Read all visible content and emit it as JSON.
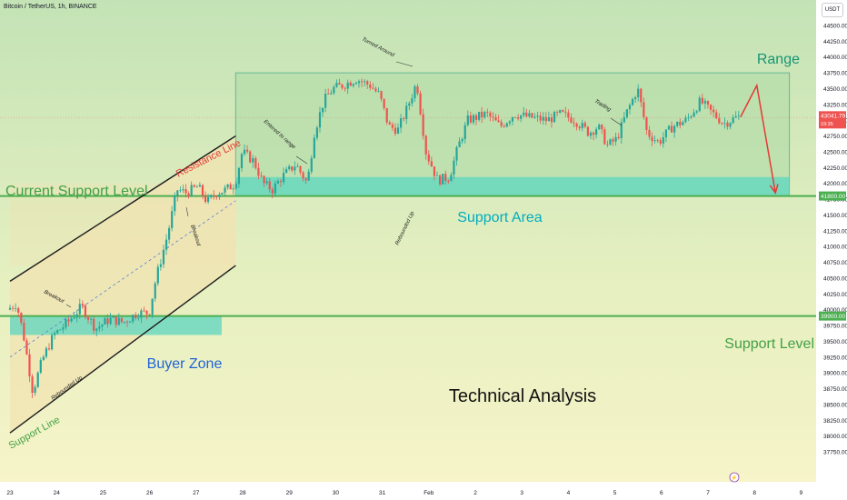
{
  "header": {
    "title": "Bitcoin / TetherUS, 1h, BINANCE",
    "currency_button": "USDT"
  },
  "colors": {
    "background": "#eef3c6",
    "range_box": "#b3dca9",
    "range_border": "#2e9d7f",
    "support_area": "#5cd6c0",
    "buyer_zone": "#5cd6c0",
    "channel_fill": "#f2e3b2",
    "green_line": "#4caf50",
    "bull": "#26a69a",
    "bear": "#ef5350",
    "arrow": "#e53935",
    "label_green": "#43a047",
    "label_cyan": "#00acc1",
    "label_blue": "#1e63d6",
    "label_red": "#e53935",
    "label_teal": "#189473"
  },
  "chart_data": {
    "type": "candlestick",
    "x_ticks": [
      "23",
      "24",
      "25",
      "26",
      "27",
      "28",
      "29",
      "30",
      "31",
      "Feb",
      "2",
      "3",
      "4",
      "5",
      "6",
      "7",
      "8",
      "9"
    ],
    "y_ticks": [
      37750,
      38000,
      38250,
      38500,
      38750,
      39000,
      39250,
      39500,
      39750,
      40000,
      40250,
      40500,
      40750,
      41000,
      41250,
      41500,
      41750,
      42000,
      42250,
      42500,
      42750,
      43000,
      43250,
      43500,
      43750,
      44000,
      44250,
      44500
    ],
    "ylim": [
      37600,
      44750
    ],
    "y_tick_labels": {
      "37750": "37750.00",
      "38000": "38000.00",
      "38250": "38250.00",
      "38500": "38500.00",
      "38750": "38750.00",
      "39000": "39000.00",
      "39250": "39250.00",
      "39500": "39500.00",
      "39750": "39750.00",
      "40000": "40000.00",
      "40250": "40250.00",
      "40500": "40500.00",
      "40750": "40750.00",
      "41000": "41000.00",
      "41250": "41250.00",
      "41500": "41500.00",
      "41750": "41750.00",
      "42000": "42000.00",
      "42250": "42250.00",
      "42500": "42500.00",
      "42750": "42750.00",
      "43000": "43000.00",
      "43250": "43250.00",
      "43500": "43500.00",
      "43750": "43750.00",
      "44000": "44000.00",
      "44250": "44250.00",
      "44500": "44500.00"
    },
    "price_path": [
      [
        0,
        40000
      ],
      [
        0.2,
        40100
      ],
      [
        0.35,
        39600
      ],
      [
        0.55,
        38700
      ],
      [
        0.75,
        39200
      ],
      [
        1.0,
        39600
      ],
      [
        1.3,
        39800
      ],
      [
        1.6,
        40050
      ],
      [
        1.9,
        39700
      ],
      [
        2.2,
        39850
      ],
      [
        2.5,
        39800
      ],
      [
        2.8,
        39950
      ],
      [
        3.05,
        39950
      ],
      [
        3.2,
        40500
      ],
      [
        3.45,
        41200
      ],
      [
        3.65,
        41900
      ],
      [
        3.85,
        41850
      ],
      [
        4.1,
        41950
      ],
      [
        4.3,
        41700
      ],
      [
        4.5,
        41850
      ],
      [
        4.7,
        41900
      ],
      [
        4.9,
        42000
      ],
      [
        5.05,
        42500
      ],
      [
        5.3,
        42350
      ],
      [
        5.5,
        42000
      ],
      [
        5.7,
        41900
      ],
      [
        5.9,
        42100
      ],
      [
        6.2,
        42300
      ],
      [
        6.45,
        42000
      ],
      [
        6.6,
        42800
      ],
      [
        6.8,
        43300
      ],
      [
        7.0,
        43500
      ],
      [
        7.2,
        43550
      ],
      [
        7.5,
        43650
      ],
      [
        7.8,
        43550
      ],
      [
        8.0,
        43400
      ],
      [
        8.2,
        42900
      ],
      [
        8.4,
        42850
      ],
      [
        8.6,
        43200
      ],
      [
        8.8,
        43600
      ],
      [
        9.0,
        42500
      ],
      [
        9.25,
        42050
      ],
      [
        9.5,
        42100
      ],
      [
        9.7,
        42600
      ],
      [
        9.9,
        43000
      ],
      [
        10.3,
        43100
      ],
      [
        10.6,
        42900
      ],
      [
        10.9,
        43100
      ],
      [
        11.2,
        43050
      ],
      [
        11.6,
        43000
      ],
      [
        11.9,
        43100
      ],
      [
        12.2,
        43000
      ],
      [
        12.5,
        42800
      ],
      [
        12.7,
        42900
      ],
      [
        12.9,
        42600
      ],
      [
        13.1,
        42700
      ],
      [
        13.3,
        43100
      ],
      [
        13.55,
        43500
      ],
      [
        13.75,
        42800
      ],
      [
        14.0,
        42650
      ],
      [
        14.3,
        42900
      ],
      [
        14.6,
        43000
      ],
      [
        14.9,
        43300
      ],
      [
        15.1,
        43150
      ],
      [
        15.4,
        42950
      ],
      [
        15.7,
        43050
      ]
    ],
    "projection": [
      [
        15.7,
        43050
      ],
      [
        16.05,
        43550
      ],
      [
        16.45,
        41850
      ]
    ],
    "lines": [
      {
        "name": "Current Support Level",
        "price": 41800
      },
      {
        "name": "Support Level",
        "price": 39900
      }
    ],
    "zones": [
      {
        "name": "Range",
        "x": [
          4.85,
          16.75
        ],
        "y": [
          41800,
          43750
        ]
      },
      {
        "name": "Support Area",
        "x": [
          4.85,
          16.75
        ],
        "y": [
          41800,
          42100
        ]
      },
      {
        "name": "Buyer Zone",
        "x": [
          0,
          4.55
        ],
        "y": [
          39600,
          39900
        ]
      }
    ],
    "channel": {
      "upper": [
        [
          0,
          40450
        ],
        [
          4.85,
          42750
        ]
      ],
      "lower": [
        [
          0,
          38050
        ],
        [
          4.85,
          40700
        ]
      ],
      "end": 4.85
    },
    "price_labels": [
      {
        "price": 43041.79,
        "text": "43041.79",
        "subtext": "19:35",
        "kind": "current"
      },
      {
        "price": 41800,
        "text": "41800.00",
        "kind": "level"
      },
      {
        "price": 39900,
        "text": "39900.00",
        "kind": "level"
      }
    ],
    "annotations": {
      "range": "Range",
      "current_support_level": "Current Support Level",
      "resistance_line": "Resistance Line",
      "support_area": "Support Area",
      "buyer_zone": "Buyer Zone",
      "support_level": "Support Level",
      "technical_analysis": "Technical Analysis",
      "support_line": "Support Line",
      "breakout_1": "Breakout",
      "breakout_2": "Breakout",
      "rebounded_up_1": "Rebounded Up",
      "rebounded_up_2": "Rebounded Up",
      "entered_to_range": "Entered to range",
      "turned_around": "Turned Around",
      "trading": "Trading"
    }
  }
}
